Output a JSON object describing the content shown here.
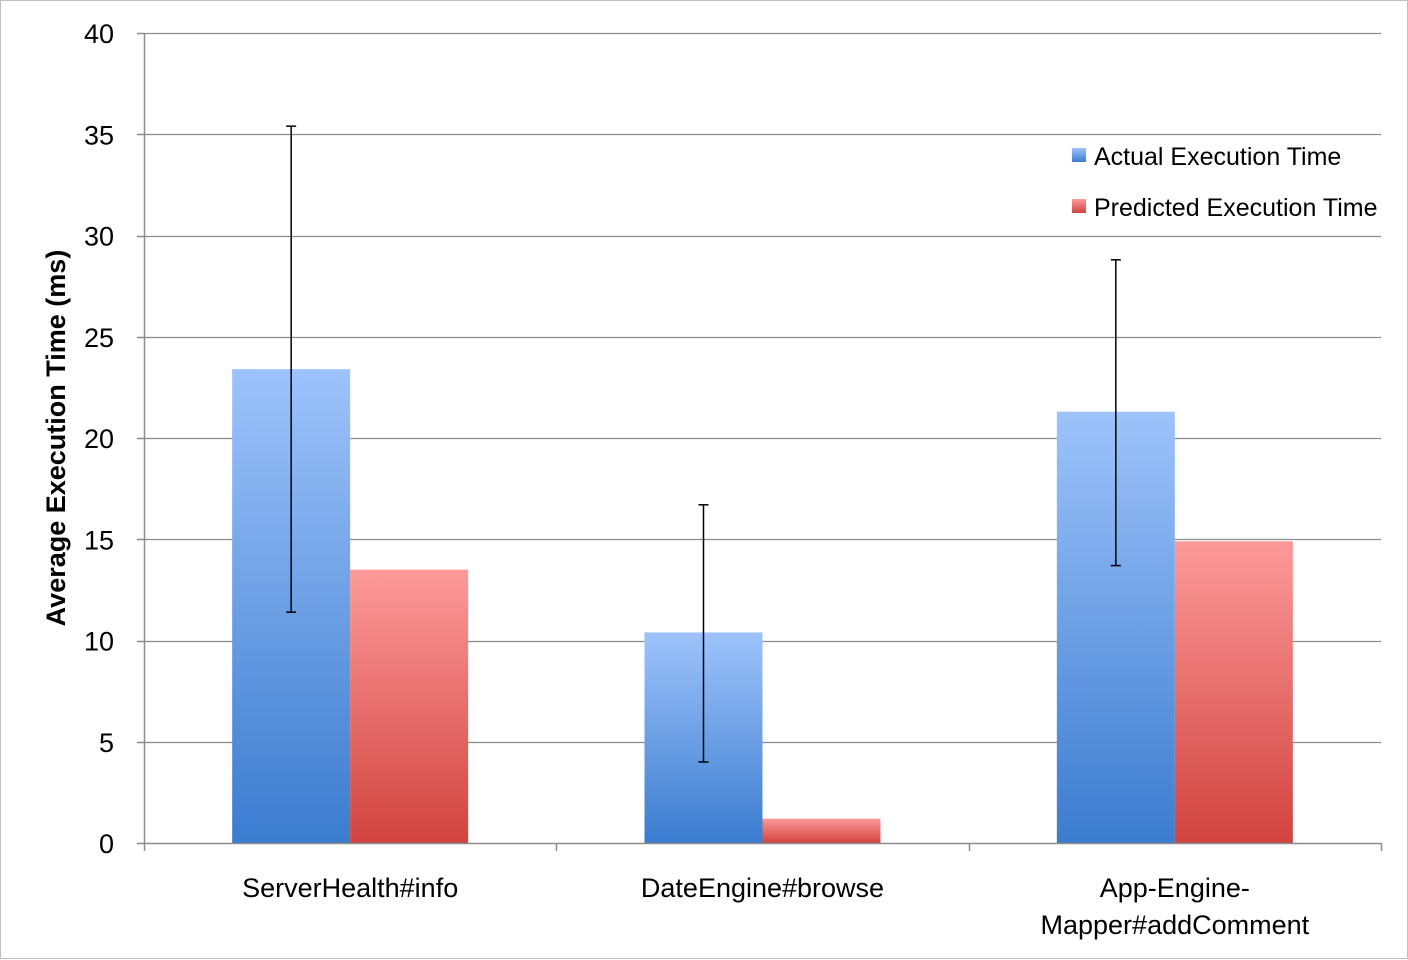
{
  "chart_data": {
    "type": "bar",
    "categories": [
      "ServerHealth#info",
      "DateEngine#browse",
      "App-Engine-Mapper#addComment"
    ],
    "category_lines": [
      [
        "ServerHealth#info"
      ],
      [
        "DateEngine#browse"
      ],
      [
        "App-Engine-",
        "Mapper#addComment"
      ]
    ],
    "series": [
      {
        "name": "Actual Execution Time",
        "values": [
          23.4,
          10.4,
          21.3
        ],
        "error_low": [
          11.4,
          4.0,
          13.7
        ],
        "error_high": [
          35.4,
          16.7,
          28.8
        ],
        "color_top": "#9ec3fb",
        "color_bottom": "#3b7ccf",
        "legend_color": "#4f8fe0"
      },
      {
        "name": "Predicted Execution Time",
        "values": [
          13.5,
          1.2,
          14.9
        ],
        "color_top": "#fc9a99",
        "color_bottom": "#d1433f",
        "legend_color": "#e2605d"
      }
    ],
    "xlabel": "",
    "ylabel": "Average Execution Time (ms)",
    "ylim": [
      0,
      40
    ],
    "yticks": [
      0,
      5,
      10,
      15,
      20,
      25,
      30,
      35,
      40
    ],
    "grid": true,
    "legend_position": "top-right",
    "gridline_color": "#8c8c8c",
    "axis_color": "#8c8c8c"
  }
}
